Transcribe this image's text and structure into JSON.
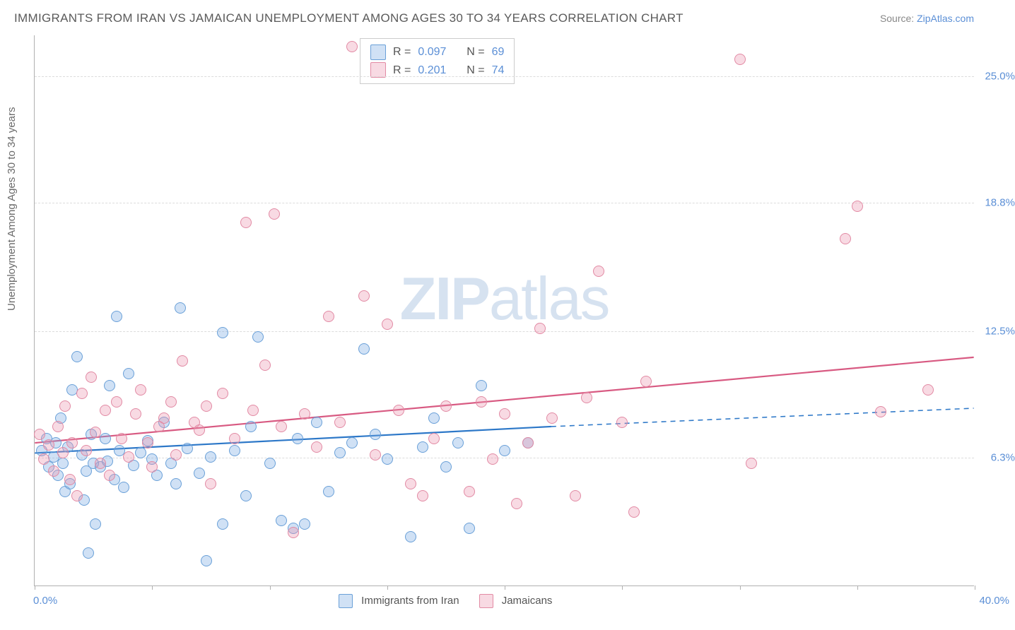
{
  "title": "IMMIGRANTS FROM IRAN VS JAMAICAN UNEMPLOYMENT AMONG AGES 30 TO 34 YEARS CORRELATION CHART",
  "source_label": "Source:",
  "source_site": "ZipAtlas.com",
  "watermark_a": "ZIP",
  "watermark_b": "atlas",
  "chart": {
    "type": "scatter",
    "ylabel": "Unemployment Among Ages 30 to 34 years",
    "xlim": [
      0,
      40
    ],
    "ylim": [
      0,
      27
    ],
    "xmin_label": "0.0%",
    "xmax_label": "40.0%",
    "yticks": [
      6.3,
      12.5,
      18.8,
      25.0
    ],
    "ytick_labels": [
      "6.3%",
      "12.5%",
      "18.8%",
      "25.0%"
    ],
    "xticks": [
      0,
      5,
      10,
      15,
      20,
      25,
      30,
      35,
      40
    ],
    "background_color": "#ffffff",
    "grid_color": "#dcdcdc",
    "marker_radius": 8,
    "marker_border": 1.5,
    "trend_width": 2.2,
    "series": [
      {
        "name": "Immigrants from Iran",
        "fill": "rgba(120,170,225,0.35)",
        "stroke": "#6aa0d8",
        "trend_color": "#2d78c8",
        "trend": {
          "x1": 0,
          "y1": 6.5,
          "x2": 22,
          "y2": 7.8,
          "dash_to_x": 40,
          "dash_to_y": 8.7
        },
        "R_label": "R =",
        "R": "0.097",
        "N_label": "N =",
        "N": "69",
        "points": [
          [
            0.3,
            6.6
          ],
          [
            0.5,
            7.2
          ],
          [
            0.6,
            5.8
          ],
          [
            0.8,
            6.3
          ],
          [
            0.9,
            7.0
          ],
          [
            1.0,
            5.4
          ],
          [
            1.1,
            8.2
          ],
          [
            1.2,
            6.0
          ],
          [
            1.3,
            4.6
          ],
          [
            1.4,
            6.8
          ],
          [
            1.5,
            5.0
          ],
          [
            1.6,
            9.6
          ],
          [
            1.8,
            11.2
          ],
          [
            2.0,
            6.4
          ],
          [
            2.1,
            4.2
          ],
          [
            2.2,
            5.6
          ],
          [
            2.3,
            1.6
          ],
          [
            2.4,
            7.4
          ],
          [
            2.5,
            6.0
          ],
          [
            2.6,
            3.0
          ],
          [
            2.8,
            5.8
          ],
          [
            3.0,
            7.2
          ],
          [
            3.1,
            6.1
          ],
          [
            3.2,
            9.8
          ],
          [
            3.4,
            5.2
          ],
          [
            3.5,
            13.2
          ],
          [
            3.6,
            6.6
          ],
          [
            3.8,
            4.8
          ],
          [
            4.0,
            10.4
          ],
          [
            4.2,
            5.9
          ],
          [
            4.5,
            6.5
          ],
          [
            4.8,
            7.1
          ],
          [
            5.0,
            6.2
          ],
          [
            5.2,
            5.4
          ],
          [
            5.5,
            8.0
          ],
          [
            5.8,
            6.0
          ],
          [
            6.0,
            5.0
          ],
          [
            6.2,
            13.6
          ],
          [
            6.5,
            6.7
          ],
          [
            7.0,
            5.5
          ],
          [
            7.3,
            1.2
          ],
          [
            7.5,
            6.3
          ],
          [
            8.0,
            3.0
          ],
          [
            8.0,
            12.4
          ],
          [
            8.5,
            6.6
          ],
          [
            9.0,
            4.4
          ],
          [
            9.2,
            7.8
          ],
          [
            9.5,
            12.2
          ],
          [
            10.0,
            6.0
          ],
          [
            10.5,
            3.2
          ],
          [
            11.0,
            2.8
          ],
          [
            11.2,
            7.2
          ],
          [
            11.5,
            3.0
          ],
          [
            12.0,
            8.0
          ],
          [
            12.5,
            4.6
          ],
          [
            13.0,
            6.5
          ],
          [
            13.5,
            7.0
          ],
          [
            14.0,
            11.6
          ],
          [
            14.5,
            7.4
          ],
          [
            15.0,
            6.2
          ],
          [
            16.0,
            2.4
          ],
          [
            16.5,
            6.8
          ],
          [
            17.0,
            8.2
          ],
          [
            17.5,
            5.8
          ],
          [
            18.0,
            7.0
          ],
          [
            18.5,
            2.8
          ],
          [
            19.0,
            9.8
          ],
          [
            20.0,
            6.6
          ],
          [
            21.0,
            7.0
          ]
        ]
      },
      {
        "name": "Jamaicans",
        "fill": "rgba(235,150,175,0.35)",
        "stroke": "#e28aa4",
        "trend_color": "#d85a82",
        "trend": {
          "x1": 0,
          "y1": 7.0,
          "x2": 40,
          "y2": 11.2
        },
        "R_label": "R =",
        "R": "0.201",
        "N_label": "N =",
        "N": "74",
        "points": [
          [
            0.2,
            7.4
          ],
          [
            0.4,
            6.2
          ],
          [
            0.6,
            6.9
          ],
          [
            0.8,
            5.6
          ],
          [
            1.0,
            7.8
          ],
          [
            1.2,
            6.5
          ],
          [
            1.3,
            8.8
          ],
          [
            1.5,
            5.2
          ],
          [
            1.6,
            7.0
          ],
          [
            1.8,
            4.4
          ],
          [
            2.0,
            9.4
          ],
          [
            2.2,
            6.6
          ],
          [
            2.4,
            10.2
          ],
          [
            2.6,
            7.5
          ],
          [
            2.8,
            6.0
          ],
          [
            3.0,
            8.6
          ],
          [
            3.2,
            5.4
          ],
          [
            3.5,
            9.0
          ],
          [
            3.7,
            7.2
          ],
          [
            4.0,
            6.3
          ],
          [
            4.3,
            8.4
          ],
          [
            4.5,
            9.6
          ],
          [
            4.8,
            7.0
          ],
          [
            5.0,
            5.8
          ],
          [
            5.3,
            7.8
          ],
          [
            5.5,
            8.2
          ],
          [
            5.8,
            9.0
          ],
          [
            6.0,
            6.4
          ],
          [
            6.3,
            11.0
          ],
          [
            6.8,
            8.0
          ],
          [
            7.0,
            7.6
          ],
          [
            7.3,
            8.8
          ],
          [
            7.5,
            5.0
          ],
          [
            8.0,
            9.4
          ],
          [
            8.5,
            7.2
          ],
          [
            9.0,
            17.8
          ],
          [
            9.3,
            8.6
          ],
          [
            9.8,
            10.8
          ],
          [
            10.2,
            18.2
          ],
          [
            10.5,
            7.8
          ],
          [
            11.0,
            2.6
          ],
          [
            11.5,
            8.4
          ],
          [
            12.0,
            6.8
          ],
          [
            12.5,
            13.2
          ],
          [
            13.0,
            8.0
          ],
          [
            13.5,
            26.4
          ],
          [
            14.0,
            14.2
          ],
          [
            14.5,
            6.4
          ],
          [
            15.0,
            12.8
          ],
          [
            15.5,
            8.6
          ],
          [
            16.0,
            5.0
          ],
          [
            16.5,
            4.4
          ],
          [
            17.0,
            7.2
          ],
          [
            17.5,
            8.8
          ],
          [
            18.5,
            4.6
          ],
          [
            19.0,
            9.0
          ],
          [
            19.5,
            6.2
          ],
          [
            20.0,
            8.4
          ],
          [
            20.5,
            4.0
          ],
          [
            21.0,
            7.0
          ],
          [
            21.5,
            12.6
          ],
          [
            22.0,
            8.2
          ],
          [
            23.0,
            4.4
          ],
          [
            23.5,
            9.2
          ],
          [
            24.0,
            15.4
          ],
          [
            25.0,
            8.0
          ],
          [
            25.5,
            3.6
          ],
          [
            26.0,
            10.0
          ],
          [
            30.0,
            25.8
          ],
          [
            30.5,
            6.0
          ],
          [
            34.5,
            17.0
          ],
          [
            35.0,
            18.6
          ],
          [
            36.0,
            8.5
          ],
          [
            38.0,
            9.6
          ]
        ]
      }
    ]
  }
}
